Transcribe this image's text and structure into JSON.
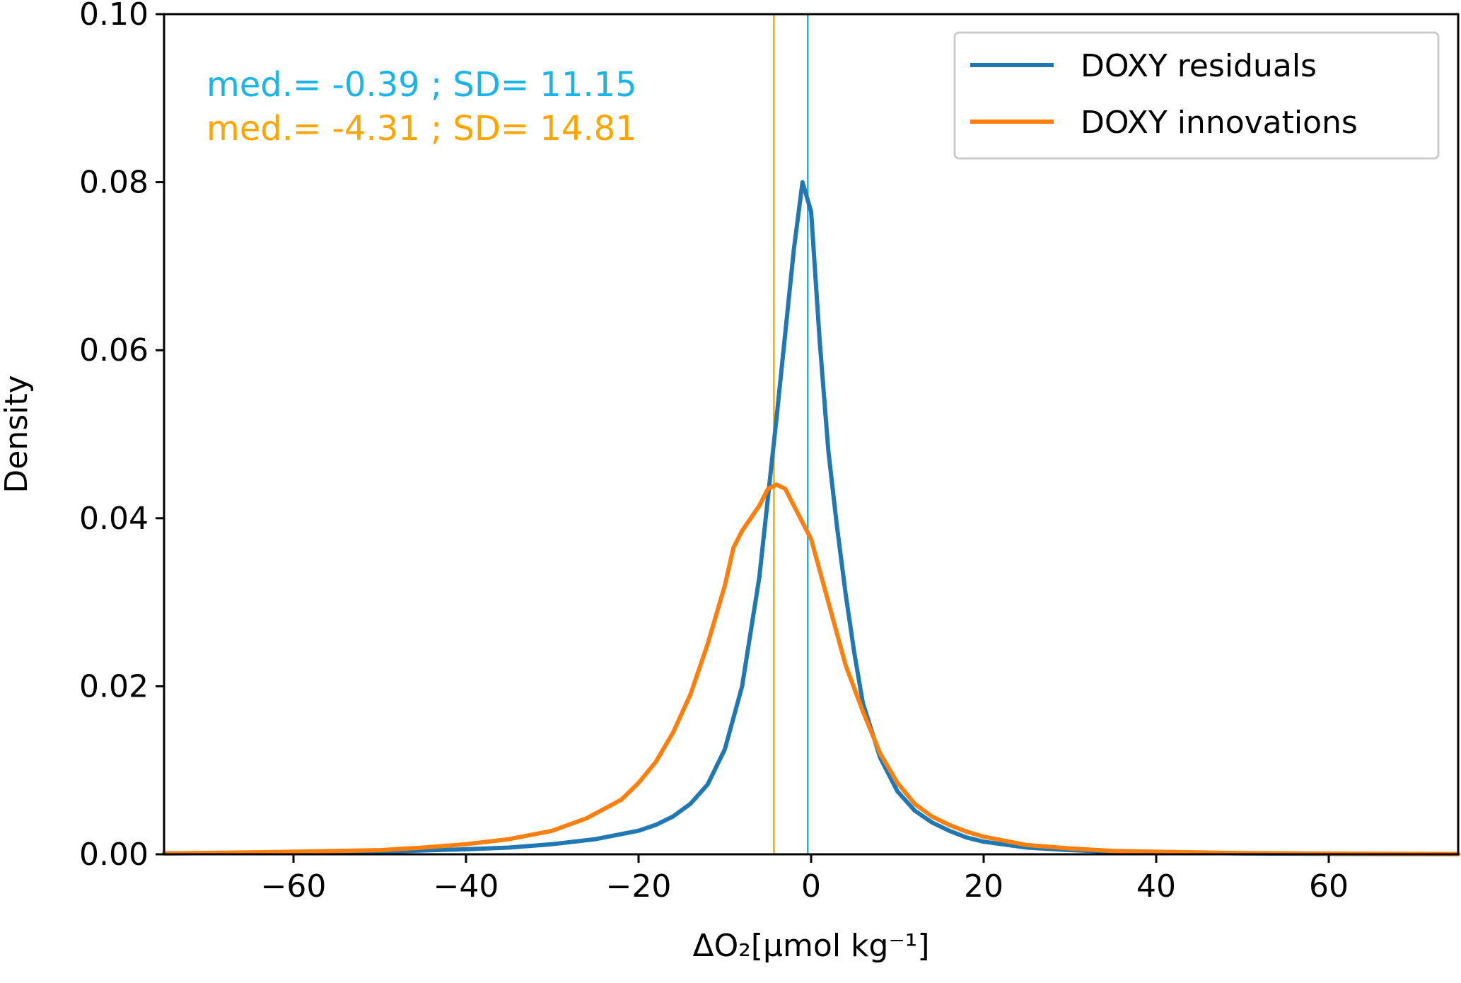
{
  "chart_data": {
    "type": "line",
    "title": "",
    "xlabel": "ΔO₂[μmol kg⁻¹]",
    "ylabel": "Density",
    "xlim": [
      -75,
      75
    ],
    "ylim": [
      0,
      0.1
    ],
    "xticks": [
      -60,
      -40,
      -20,
      0,
      20,
      40,
      60
    ],
    "xtick_labels": [
      "−60",
      "−40",
      "−20",
      "0",
      "20",
      "40",
      "60"
    ],
    "yticks": [
      0,
      0.02,
      0.04,
      0.06,
      0.08,
      0.1
    ],
    "ytick_labels": [
      "0.00",
      "0.02",
      "0.04",
      "0.06",
      "0.08",
      "0.10"
    ],
    "grid": false,
    "legend_position": "top-right",
    "series": [
      {
        "name": "DOXY residuals",
        "color": "#1f77b4",
        "x": [
          -75,
          -60,
          -50,
          -40,
          -35,
          -30,
          -25,
          -20,
          -18,
          -16,
          -14,
          -12,
          -10,
          -8,
          -6,
          -4,
          -3,
          -2,
          -1,
          0,
          1,
          2,
          3,
          4,
          5,
          6,
          8,
          10,
          12,
          14,
          16,
          18,
          20,
          25,
          30,
          35,
          40,
          50,
          60,
          75
        ],
        "y": [
          0.0001,
          0.0002,
          0.0003,
          0.0006,
          0.0008,
          0.0012,
          0.0018,
          0.0028,
          0.0035,
          0.0045,
          0.006,
          0.0083,
          0.0125,
          0.02,
          0.033,
          0.052,
          0.062,
          0.072,
          0.08,
          0.0765,
          0.061,
          0.048,
          0.039,
          0.031,
          0.024,
          0.018,
          0.0115,
          0.0075,
          0.0052,
          0.0038,
          0.0028,
          0.002,
          0.0015,
          0.0008,
          0.0005,
          0.0003,
          0.0002,
          0.0001,
          5e-05,
          2e-05
        ]
      },
      {
        "name": "DOXY innovations",
        "color": "#ff7f0e",
        "x": [
          -75,
          -60,
          -50,
          -45,
          -40,
          -35,
          -30,
          -26,
          -22,
          -20,
          -18,
          -16,
          -14,
          -12,
          -10,
          -9,
          -8,
          -6,
          -5,
          -4,
          -3,
          -2,
          -1,
          0,
          2,
          4,
          6,
          8,
          10,
          12,
          14,
          16,
          18,
          20,
          25,
          30,
          35,
          40,
          50,
          60,
          75
        ],
        "y": [
          0.0001,
          0.0003,
          0.0005,
          0.0008,
          0.0012,
          0.0018,
          0.0028,
          0.0043,
          0.0065,
          0.0085,
          0.011,
          0.0145,
          0.019,
          0.025,
          0.032,
          0.0365,
          0.0385,
          0.0415,
          0.0435,
          0.044,
          0.0435,
          0.0415,
          0.0395,
          0.0375,
          0.03,
          0.0225,
          0.017,
          0.012,
          0.0085,
          0.006,
          0.0045,
          0.0035,
          0.0027,
          0.0021,
          0.0011,
          0.0007,
          0.0004,
          0.0003,
          0.00015,
          8e-05,
          3e-05
        ]
      }
    ],
    "median_lines": [
      {
        "x": -0.39,
        "color": "#1ab4e8"
      },
      {
        "x": -4.31,
        "color": "#ffa500"
      }
    ],
    "annotations": [
      {
        "text": "med.= -0.39 ; SD= 11.15",
        "color": "#1ab4e8"
      },
      {
        "text": "med.= -4.31 ; SD= 14.81",
        "color": "#ffa500"
      }
    ]
  }
}
